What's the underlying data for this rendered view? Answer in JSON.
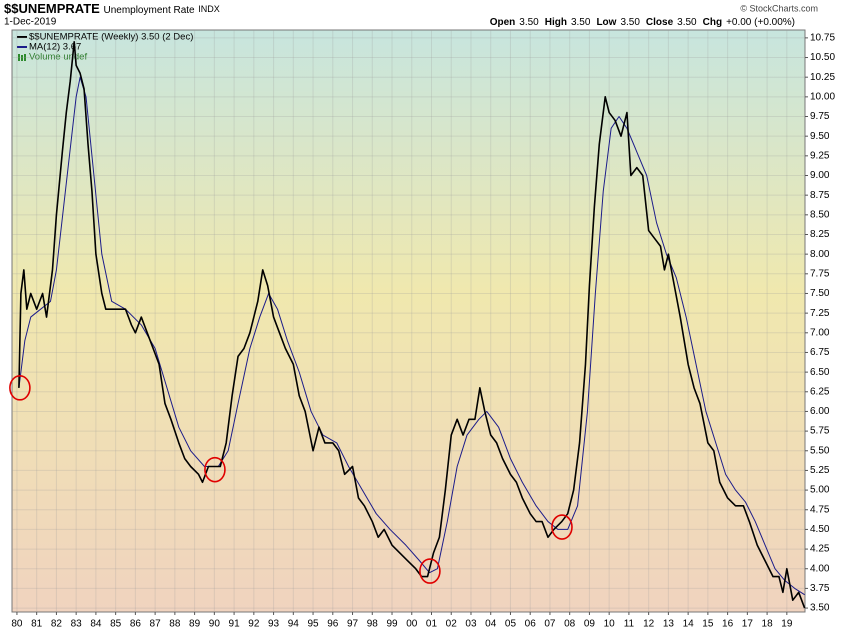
{
  "chart_data": {
    "type": "line",
    "title": "$$UNEMPRATE",
    "subtitle": "Unemployment Rate",
    "exchange": "INDX",
    "date": "1-Dec-2019",
    "quote": [
      {
        "label": "Open",
        "value": "3.50"
      },
      {
        "label": "High",
        "value": "3.50"
      },
      {
        "label": "Low",
        "value": "3.50"
      },
      {
        "label": "Close",
        "value": "3.50"
      },
      {
        "label": "Chg",
        "value": "+0.00 (+0.00%)"
      }
    ],
    "source": "© StockCharts.com",
    "volume_label": "Volume undef",
    "grid": true,
    "xlim": [
      1979.75,
      2019.92
    ],
    "ylim": [
      3.45,
      10.85
    ],
    "xticks": [
      {
        "value": 1980,
        "label": "80"
      },
      {
        "value": 1981,
        "label": "81"
      },
      {
        "value": 1982,
        "label": "82"
      },
      {
        "value": 1983,
        "label": "83"
      },
      {
        "value": 1984,
        "label": "84"
      },
      {
        "value": 1985,
        "label": "85"
      },
      {
        "value": 1986,
        "label": "86"
      },
      {
        "value": 1987,
        "label": "87"
      },
      {
        "value": 1988,
        "label": "88"
      },
      {
        "value": 1989,
        "label": "89"
      },
      {
        "value": 1990,
        "label": "90"
      },
      {
        "value": 1991,
        "label": "91"
      },
      {
        "value": 1992,
        "label": "92"
      },
      {
        "value": 1993,
        "label": "93"
      },
      {
        "value": 1994,
        "label": "94"
      },
      {
        "value": 1995,
        "label": "95"
      },
      {
        "value": 1996,
        "label": "96"
      },
      {
        "value": 1997,
        "label": "97"
      },
      {
        "value": 1998,
        "label": "98"
      },
      {
        "value": 1999,
        "label": "99"
      },
      {
        "value": 2000,
        "label": "00"
      },
      {
        "value": 2001,
        "label": "01"
      },
      {
        "value": 2002,
        "label": "02"
      },
      {
        "value": 2003,
        "label": "03"
      },
      {
        "value": 2004,
        "label": "04"
      },
      {
        "value": 2005,
        "label": "05"
      },
      {
        "value": 2006,
        "label": "06"
      },
      {
        "value": 2007,
        "label": "07"
      },
      {
        "value": 2008,
        "label": "08"
      },
      {
        "value": 2009,
        "label": "09"
      },
      {
        "value": 2010,
        "label": "10"
      },
      {
        "value": 2011,
        "label": "11"
      },
      {
        "value": 2012,
        "label": "12"
      },
      {
        "value": 2013,
        "label": "13"
      },
      {
        "value": 2014,
        "label": "14"
      },
      {
        "value": 2015,
        "label": "15"
      },
      {
        "value": 2016,
        "label": "16"
      },
      {
        "value": 2017,
        "label": "17"
      },
      {
        "value": 2018,
        "label": "18"
      },
      {
        "value": 2019,
        "label": "19"
      }
    ],
    "yticks": [
      {
        "value": 3.5,
        "label": "3.50"
      },
      3.75,
      {
        "value": 4,
        "label": "4.00"
      },
      4.25,
      {
        "value": 4.5,
        "label": "4.50"
      },
      4.75,
      {
        "value": 5,
        "label": "5.00"
      },
      5.25,
      {
        "value": 5.5,
        "label": "5.50"
      },
      5.75,
      {
        "value": 6,
        "label": "6.00"
      },
      6.25,
      {
        "value": 6.5,
        "label": "6.50"
      },
      6.75,
      {
        "value": 7,
        "label": "7.00"
      },
      7.25,
      {
        "value": 7.5,
        "label": "7.50"
      },
      7.75,
      {
        "value": 8,
        "label": "8.00"
      },
      8.25,
      {
        "value": 8.5,
        "label": "8.50"
      },
      8.75,
      {
        "value": 9,
        "label": "9.00"
      },
      9.25,
      {
        "value": 9.5,
        "label": "9.50"
      },
      9.75,
      {
        "value": 10,
        "label": "10.00"
      },
      10.25,
      {
        "value": 10.5,
        "label": "10.50"
      },
      10.75
    ],
    "series": [
      {
        "name": "$$UNEMPRATE (Weekly) 3.50 (2 Dec)",
        "color": "#000000",
        "x": [
          1980.1,
          1980.2,
          1980.35,
          1980.5,
          1980.7,
          1981.0,
          1981.3,
          1981.5,
          1981.8,
          1982.0,
          1982.3,
          1982.5,
          1982.7,
          1982.9,
          1983.0,
          1983.2,
          1983.4,
          1983.6,
          1983.8,
          1984.0,
          1984.3,
          1984.5,
          1984.8,
          1985.0,
          1985.5,
          1985.8,
          1986.0,
          1986.3,
          1986.6,
          1986.9,
          1987.2,
          1987.5,
          1987.8,
          1988.2,
          1988.5,
          1988.8,
          1989.2,
          1989.4,
          1989.7,
          1990.0,
          1990.3,
          1990.6,
          1990.9,
          1991.2,
          1991.5,
          1991.8,
          1992.2,
          1992.45,
          1992.7,
          1993.0,
          1993.3,
          1993.6,
          1994.0,
          1994.3,
          1994.6,
          1995.0,
          1995.3,
          1995.6,
          1996.0,
          1996.3,
          1996.6,
          1997.0,
          1997.3,
          1997.6,
          1998.0,
          1998.3,
          1998.6,
          1999.0,
          1999.4,
          1999.8,
          2000.2,
          2000.5,
          2000.8,
          2001.1,
          2001.4,
          2001.7,
          2002.0,
          2002.3,
          2002.6,
          2002.9,
          2003.2,
          2003.45,
          2003.7,
          2004.0,
          2004.3,
          2004.6,
          2005.0,
          2005.3,
          2005.6,
          2006.0,
          2006.3,
          2006.6,
          2006.9,
          2007.2,
          2007.6,
          2007.9,
          2008.2,
          2008.5,
          2008.8,
          2009.0,
          2009.25,
          2009.5,
          2009.8,
          2010.0,
          2010.3,
          2010.6,
          2010.9,
          2011.1,
          2011.4,
          2011.7,
          2012.0,
          2012.3,
          2012.6,
          2012.8,
          2013.0,
          2013.3,
          2013.6,
          2014.0,
          2014.3,
          2014.6,
          2015.0,
          2015.3,
          2015.6,
          2016.0,
          2016.4,
          2016.8,
          2017.1,
          2017.5,
          2017.9,
          2018.3,
          2018.6,
          2018.8,
          2019.0,
          2019.3,
          2019.6,
          2019.9
        ],
        "values": [
          6.3,
          7.5,
          7.8,
          7.3,
          7.5,
          7.3,
          7.5,
          7.2,
          7.8,
          8.5,
          9.3,
          9.8,
          10.2,
          10.7,
          10.4,
          10.3,
          10.1,
          9.4,
          8.8,
          8.0,
          7.5,
          7.3,
          7.3,
          7.3,
          7.3,
          7.1,
          7.0,
          7.2,
          7.0,
          6.8,
          6.6,
          6.1,
          5.9,
          5.6,
          5.4,
          5.3,
          5.2,
          5.1,
          5.3,
          5.3,
          5.3,
          5.6,
          6.2,
          6.7,
          6.8,
          7.0,
          7.4,
          7.8,
          7.6,
          7.2,
          7.0,
          6.8,
          6.6,
          6.2,
          6.0,
          5.5,
          5.8,
          5.6,
          5.6,
          5.5,
          5.2,
          5.3,
          4.9,
          4.8,
          4.6,
          4.4,
          4.5,
          4.3,
          4.2,
          4.1,
          4.0,
          3.9,
          3.9,
          4.2,
          4.4,
          5.0,
          5.7,
          5.9,
          5.7,
          5.9,
          5.9,
          6.3,
          6.0,
          5.7,
          5.6,
          5.4,
          5.2,
          5.1,
          4.9,
          4.7,
          4.6,
          4.6,
          4.4,
          4.5,
          4.6,
          4.7,
          5.0,
          5.6,
          6.6,
          7.6,
          8.6,
          9.4,
          10.0,
          9.8,
          9.7,
          9.5,
          9.8,
          9.0,
          9.1,
          9.0,
          8.3,
          8.2,
          8.1,
          7.8,
          8.0,
          7.6,
          7.2,
          6.6,
          6.3,
          6.1,
          5.6,
          5.5,
          5.1,
          4.9,
          4.8,
          4.8,
          4.6,
          4.3,
          4.1,
          3.9,
          3.9,
          3.7,
          4.0,
          3.6,
          3.7,
          3.5
        ]
      },
      {
        "name": "MA(12) 3.67",
        "color": "#1c1c8a",
        "x": [
          1980.1,
          1980.4,
          1980.7,
          1981.2,
          1981.7,
          1982.0,
          1982.5,
          1983.0,
          1983.2,
          1983.5,
          1983.9,
          1984.3,
          1984.8,
          1985.5,
          1986.3,
          1987.0,
          1987.6,
          1988.2,
          1988.8,
          1989.5,
          1990.2,
          1990.7,
          1991.2,
          1991.8,
          1992.3,
          1992.75,
          1993.2,
          1993.7,
          1994.3,
          1994.9,
          1995.5,
          1996.2,
          1996.8,
          1997.5,
          1998.2,
          1998.9,
          1999.7,
          2000.4,
          2000.9,
          2001.3,
          2001.8,
          2002.3,
          2002.8,
          2003.4,
          2003.8,
          2004.4,
          2005.0,
          2005.6,
          2006.3,
          2006.9,
          2007.4,
          2007.9,
          2008.4,
          2008.9,
          2009.3,
          2009.7,
          2010.1,
          2010.5,
          2010.9,
          2011.4,
          2011.9,
          2012.4,
          2012.9,
          2013.4,
          2013.9,
          2014.4,
          2014.9,
          2015.4,
          2015.9,
          2016.4,
          2016.9,
          2017.4,
          2017.9,
          2018.4,
          2018.9,
          2019.4,
          2019.9
        ],
        "values": [
          6.3,
          6.9,
          7.2,
          7.3,
          7.4,
          7.8,
          8.9,
          10.0,
          10.25,
          10.0,
          9.0,
          8.0,
          7.4,
          7.3,
          7.1,
          6.8,
          6.3,
          5.8,
          5.5,
          5.3,
          5.3,
          5.5,
          6.1,
          6.8,
          7.2,
          7.5,
          7.3,
          6.9,
          6.5,
          6.0,
          5.7,
          5.6,
          5.3,
          5.0,
          4.7,
          4.5,
          4.3,
          4.1,
          3.95,
          4.0,
          4.6,
          5.3,
          5.7,
          5.9,
          6.0,
          5.8,
          5.4,
          5.1,
          4.8,
          4.6,
          4.5,
          4.5,
          4.8,
          6.0,
          7.5,
          8.8,
          9.6,
          9.75,
          9.6,
          9.3,
          9.0,
          8.4,
          8.0,
          7.7,
          7.2,
          6.6,
          6.0,
          5.6,
          5.2,
          5.0,
          4.85,
          4.6,
          4.3,
          4.0,
          3.85,
          3.75,
          3.67
        ]
      }
    ],
    "highlights": {
      "color": "#e00000",
      "x": [
        1980.15,
        1990.03,
        2000.92,
        2007.61
      ],
      "y": [
        6.3,
        5.26,
        3.97,
        4.53
      ]
    }
  }
}
